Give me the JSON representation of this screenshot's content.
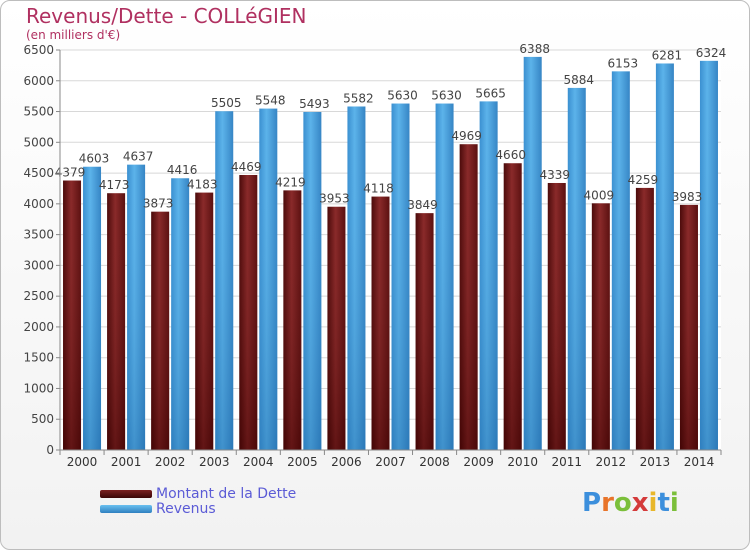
{
  "header": {
    "title": "Revenus/Dette - COLLéGIEN",
    "subtitle": "(en milliers d'€)"
  },
  "legend": {
    "items": [
      {
        "label": "Montant de la Dette",
        "color": "#6b1414"
      },
      {
        "label": "Revenus",
        "color": "#4aa3df"
      }
    ]
  },
  "logo": {
    "text": "Proxiti"
  },
  "chart_data": {
    "type": "bar",
    "title": "Revenus/Dette - COLLéGIEN",
    "ylabel": "(en milliers d'€)",
    "xlabel": "",
    "ylim": [
      0,
      6500
    ],
    "yticks": [
      0,
      500,
      1000,
      1500,
      2000,
      2500,
      3000,
      3500,
      4000,
      4500,
      5000,
      5500,
      6000,
      6500
    ],
    "grid": true,
    "legend_position": "bottom-left",
    "categories": [
      "2000",
      "2001",
      "2002",
      "2003",
      "2004",
      "2005",
      "2006",
      "2007",
      "2008",
      "2009",
      "2010",
      "2011",
      "2012",
      "2013",
      "2014"
    ],
    "series": [
      {
        "name": "Montant de la Dette",
        "color": "#6b1414",
        "values": [
          4379,
          4173,
          3873,
          4183,
          4469,
          4219,
          3953,
          4118,
          3849,
          4969,
          4660,
          4339,
          4009,
          4259,
          3983
        ],
        "labels": [
          "4379",
          "4173",
          "3873",
          "4183",
          "4469",
          "4219",
          "3953",
          "4118",
          "3849",
          "4969",
          "4660",
          "4339",
          "4009",
          "4259",
          "3983"
        ]
      },
      {
        "name": "Revenus",
        "color": "#4aa3df",
        "values": [
          4603,
          4637,
          4416,
          5505,
          5548,
          5493,
          5582,
          5630,
          5630,
          5665,
          6388,
          5884,
          6153,
          6281,
          6324
        ],
        "labels": [
          "4603",
          "4637",
          "4416",
          "5505",
          "5548",
          "5493",
          "5582",
          "5630",
          "5630",
          "5665",
          "6388",
          "5884",
          "6153",
          "6281",
          "6324"
        ]
      }
    ]
  }
}
